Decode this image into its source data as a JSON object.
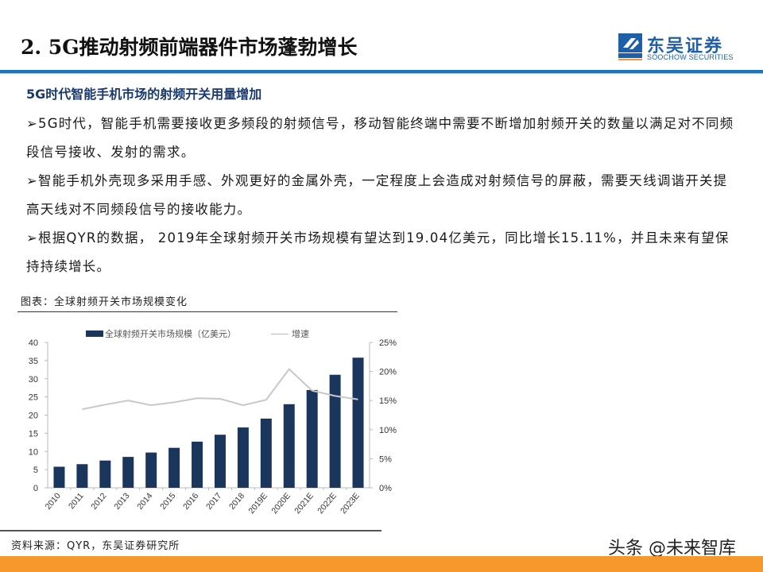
{
  "header": {
    "title": "2. 5G推动射频前端器件市场蓬勃增长",
    "logo": {
      "cn": "东吴证券",
      "en": "SOOCHOW SECURITIES",
      "mark": "SCS"
    },
    "accent_color": "#1f74bb"
  },
  "section": {
    "subtitle": "5G时代智能手机市场的射频开关用量增加",
    "bullets": [
      "➢5G时代，智能手机需要接收更多频段的射频信号，移动智能终端中需要不断增加射频开关的数量以满足对不同频段信号接收、发射的需求。",
      "➢智能手机外壳现多采用手感、外观更好的金属外壳，一定程度上会造成对射频信号的屏蔽，需要天线调谐开关提高天线对不同频段信号的接收能力。",
      "➢根据QYR的数据， 2019年全球射频开关市场规模有望达到19.04亿美元，同比增长15.11%，并且未来有望保持持续增长。"
    ]
  },
  "figure": {
    "title": "图表：全球射频开关市场规模变化",
    "source": "资料来源：QYR，东吴证券研究所"
  },
  "watermark": "头条 @未来智库",
  "chart_data": {
    "type": "bar",
    "title": "",
    "categories": [
      "2010",
      "2011",
      "2012",
      "2013",
      "2014",
      "2015",
      "2016",
      "2017",
      "2018",
      "2019E",
      "2020E",
      "2021E",
      "2022E",
      "2023E"
    ],
    "series": [
      {
        "name": "全球射频开关市场规模（亿美元）",
        "type": "bar",
        "axis": "left",
        "color": "#1b365d",
        "values": [
          5.8,
          6.5,
          7.5,
          8.5,
          9.7,
          11.0,
          12.7,
          14.6,
          16.6,
          19.04,
          23.0,
          26.9,
          31.1,
          35.8
        ]
      },
      {
        "name": "增速",
        "type": "line",
        "axis": "right",
        "color": "#c8c8c8",
        "values": [
          null,
          13.5,
          14.3,
          15.0,
          14.2,
          14.7,
          15.4,
          15.3,
          14.2,
          15.11,
          20.4,
          16.7,
          15.8,
          15.2
        ]
      }
    ],
    "left_axis": {
      "ticks": [
        "0",
        "5",
        "10",
        "15",
        "20",
        "25",
        "30",
        "35",
        "40"
      ],
      "ylim": [
        0,
        40
      ]
    },
    "right_axis": {
      "ticks": [
        "0%",
        "5%",
        "10%",
        "15%",
        "20%",
        "25%"
      ],
      "ylim": [
        0,
        25
      ]
    },
    "legend": {
      "position": "top",
      "entries": [
        "全球射频开关市场规模（亿美元）",
        "增速"
      ]
    },
    "grid": false
  }
}
